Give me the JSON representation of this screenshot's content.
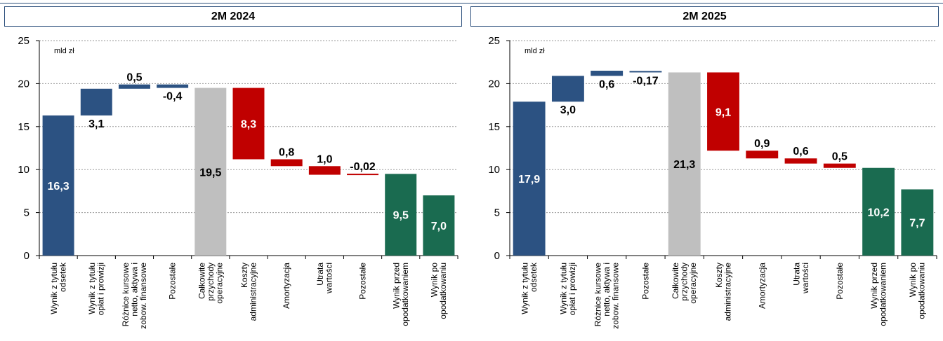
{
  "colors": {
    "blue": "#2c5282",
    "red": "#c00000",
    "gray": "#bfbfbf",
    "green": "#1a6b50"
  },
  "chart_data": [
    {
      "type": "bar",
      "title": "2M 2024",
      "unit": "mld zł",
      "ylim": [
        0,
        25
      ],
      "yticks": [
        0,
        5,
        10,
        15,
        20,
        25
      ],
      "grid": true,
      "categories": [
        [
          "Wynik z tytułu",
          "odsetek"
        ],
        [
          "Wynik z tytułu",
          "opłat i prowizji"
        ],
        [
          "Różnice kursowe",
          "netto, aktywa i",
          "zobow. finansowe"
        ],
        [
          "Pozostałe"
        ],
        [
          "Całkowite",
          "przychody",
          "operacyjne"
        ],
        [
          "Koszty",
          "administracyjne"
        ],
        [
          "Amortyzacja"
        ],
        [
          "Utrata",
          "wartości"
        ],
        [
          "Pozostałe"
        ],
        [
          "Wynik przed",
          "opodatkowaniem"
        ],
        [
          "Wynik po",
          "opodatkowaniu"
        ]
      ],
      "bars": [
        {
          "start": 0,
          "end": 16.3,
          "color": "blue",
          "label": "16,3"
        },
        {
          "start": 16.3,
          "end": 19.4,
          "color": "blue",
          "label": "3,1"
        },
        {
          "start": 19.4,
          "end": 19.9,
          "color": "blue",
          "label": "0,5"
        },
        {
          "start": 19.9,
          "end": 19.5,
          "color": "blue",
          "label": "-0,4"
        },
        {
          "start": 0,
          "end": 19.5,
          "color": "gray",
          "label": "19,5"
        },
        {
          "start": 19.5,
          "end": 11.2,
          "color": "red",
          "label": "8,3"
        },
        {
          "start": 11.2,
          "end": 10.4,
          "color": "red",
          "label": "0,8"
        },
        {
          "start": 10.4,
          "end": 9.4,
          "color": "red",
          "label": "1,0"
        },
        {
          "start": 9.52,
          "end": 9.5,
          "color": "red",
          "label": "-0,02"
        },
        {
          "start": 0,
          "end": 9.5,
          "color": "green",
          "label": "9,5"
        },
        {
          "start": 0,
          "end": 7.0,
          "color": "green",
          "label": "7,0"
        }
      ]
    },
    {
      "type": "bar",
      "title": "2M 2025",
      "unit": "mld zł",
      "ylim": [
        0,
        25
      ],
      "yticks": [
        0,
        5,
        10,
        15,
        20,
        25
      ],
      "grid": true,
      "categories": [
        [
          "Wynik z tytułu",
          "odsetek"
        ],
        [
          "Wynik z tytułu",
          "opłat i prowizji"
        ],
        [
          "Różnice kursowe",
          "netto, aktywa i",
          "zobow. finansowe"
        ],
        [
          "Pozostałe"
        ],
        [
          "Całkowite",
          "przychody",
          "operacyjne"
        ],
        [
          "Koszty",
          "administracyjne"
        ],
        [
          "Amortyzacja"
        ],
        [
          "Utrata",
          "wartości"
        ],
        [
          "Pozostałe"
        ],
        [
          "Wynik przed",
          "opodatkowaniem"
        ],
        [
          "Wynik po",
          "opodatkowaniu"
        ]
      ],
      "bars": [
        {
          "start": 0,
          "end": 17.9,
          "color": "blue",
          "label": "17,9"
        },
        {
          "start": 17.9,
          "end": 20.9,
          "color": "blue",
          "label": "3,0"
        },
        {
          "start": 20.9,
          "end": 21.5,
          "color": "blue",
          "label": "0,6"
        },
        {
          "start": 21.47,
          "end": 21.3,
          "color": "blue",
          "label": "-0,17"
        },
        {
          "start": 0,
          "end": 21.3,
          "color": "gray",
          "label": "21,3"
        },
        {
          "start": 21.3,
          "end": 12.2,
          "color": "red",
          "label": "9,1"
        },
        {
          "start": 12.2,
          "end": 11.3,
          "color": "red",
          "label": "0,9"
        },
        {
          "start": 11.3,
          "end": 10.7,
          "color": "red",
          "label": "0,6"
        },
        {
          "start": 10.7,
          "end": 10.2,
          "color": "red",
          "label": "0,5"
        },
        {
          "start": 0,
          "end": 10.2,
          "color": "green",
          "label": "10,2"
        },
        {
          "start": 0,
          "end": 7.7,
          "color": "green",
          "label": "7,7"
        }
      ]
    }
  ]
}
